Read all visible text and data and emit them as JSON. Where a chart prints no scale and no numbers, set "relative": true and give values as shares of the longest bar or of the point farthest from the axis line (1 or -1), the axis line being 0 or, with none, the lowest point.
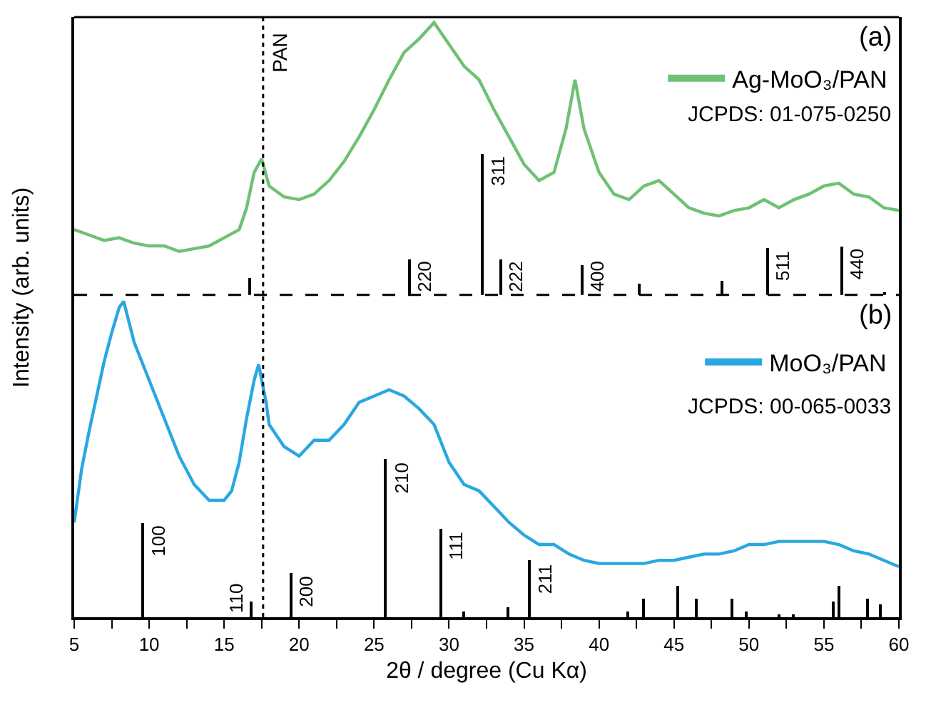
{
  "chart_data": [
    {
      "type": "line",
      "relative": true,
      "xlim": [
        5,
        60
      ],
      "tick_labels": false,
      "legend": "top right",
      "ylabel": "Intensity (arb. units)",
      "series": [
        {
          "name": "Ag-MoO₃/PAN",
          "color": "#6fc173",
          "x": [
            5,
            6,
            7,
            8,
            9,
            10,
            11,
            12,
            13,
            14,
            15,
            16,
            16.5,
            17,
            17.5,
            18,
            19,
            20,
            21,
            22,
            23,
            24,
            25,
            26,
            27,
            28,
            29,
            30,
            31,
            32,
            33,
            34,
            35,
            36,
            37,
            37.8,
            38.4,
            39,
            40,
            41,
            42,
            43,
            44,
            45,
            46,
            47,
            48,
            49,
            50,
            51,
            52,
            53,
            54,
            55,
            56,
            57,
            58,
            59,
            60
          ],
          "values": [
            0.24,
            0.22,
            0.2,
            0.21,
            0.19,
            0.18,
            0.18,
            0.16,
            0.17,
            0.18,
            0.21,
            0.24,
            0.32,
            0.45,
            0.5,
            0.4,
            0.36,
            0.35,
            0.37,
            0.42,
            0.49,
            0.58,
            0.68,
            0.79,
            0.89,
            0.94,
            1.0,
            0.92,
            0.84,
            0.79,
            0.68,
            0.58,
            0.48,
            0.42,
            0.45,
            0.61,
            0.79,
            0.61,
            0.45,
            0.37,
            0.35,
            0.4,
            0.42,
            0.37,
            0.32,
            0.3,
            0.29,
            0.31,
            0.32,
            0.35,
            0.32,
            0.35,
            0.37,
            0.4,
            0.41,
            0.37,
            0.36,
            0.32,
            0.31
          ]
        },
        {
          "type": "bar",
          "color": "#000000",
          "x": [
            16.7,
            27.4,
            32.2,
            33.5,
            38.9,
            42.7,
            48.2,
            51.3,
            56.2,
            59.1
          ],
          "values": [
            0.06,
            0.13,
            0.52,
            0.13,
            0.11,
            0.04,
            0.05,
            0.17,
            0.18,
            0.01
          ]
        }
      ],
      "ref_lines": [
        {
          "axis": "x",
          "value": 17.6,
          "label": "PAN",
          "color": "#000000",
          "line_style": "dotted"
        }
      ],
      "annotations": [
        "(a)",
        "JCPDS: 01-075-0250",
        {
          "text": "220",
          "x": 27.4,
          "y": 0.13
        },
        {
          "text": "311",
          "x": 32.2,
          "y": 0.52
        },
        {
          "text": "222",
          "x": 33.5,
          "y": 0.13
        },
        {
          "text": "400",
          "x": 38.9,
          "y": 0.11
        },
        {
          "text": "511",
          "x": 51.3,
          "y": 0.17
        },
        {
          "text": "440",
          "x": 56.2,
          "y": 0.18
        }
      ]
    },
    {
      "type": "line",
      "relative": true,
      "xlim": [
        5,
        60
      ],
      "tick_labels": "x",
      "legend": "top right",
      "xlabel": "2θ / degree (Cu Kα)",
      "xticks": [
        5,
        {
          "value": 7.5,
          "label": null
        },
        10,
        {
          "value": 12.5,
          "label": null
        },
        15,
        {
          "value": 17.5,
          "label": null
        },
        20,
        {
          "value": 22.5,
          "label": null
        },
        25,
        {
          "value": 27.5,
          "label": null
        },
        30,
        {
          "value": 32.5,
          "label": null
        },
        35,
        {
          "value": 37.5,
          "label": null
        },
        40,
        {
          "value": 42.5,
          "label": null
        },
        45,
        {
          "value": 47.5,
          "label": null
        },
        50,
        {
          "value": 52.5,
          "label": null
        },
        55,
        {
          "value": 57.5,
          "label": null
        },
        60
      ],
      "series": [
        {
          "name": "MoO₃/PAN",
          "color": "#29a8e0",
          "x": [
            5,
            5.5,
            6,
            6.5,
            7,
            7.5,
            8,
            8.3,
            9,
            10,
            11,
            12,
            13,
            14,
            15,
            15.5,
            16,
            16.5,
            17,
            17.3,
            17.8,
            18,
            19,
            20,
            21,
            22,
            23,
            24,
            25,
            26,
            27,
            28,
            29,
            30,
            31,
            32,
            33,
            34,
            35,
            36,
            37,
            38,
            39,
            40,
            41,
            42,
            43,
            44,
            45,
            46,
            47,
            48,
            49,
            50,
            51,
            52,
            53,
            54,
            55,
            56,
            57,
            58,
            59,
            60
          ],
          "values": [
            0.3,
            0.47,
            0.59,
            0.7,
            0.81,
            0.9,
            0.98,
            1.0,
            0.87,
            0.75,
            0.63,
            0.51,
            0.42,
            0.37,
            0.37,
            0.4,
            0.49,
            0.63,
            0.75,
            0.8,
            0.68,
            0.61,
            0.54,
            0.51,
            0.56,
            0.56,
            0.61,
            0.68,
            0.7,
            0.72,
            0.7,
            0.66,
            0.61,
            0.49,
            0.42,
            0.4,
            0.35,
            0.3,
            0.26,
            0.23,
            0.23,
            0.2,
            0.18,
            0.17,
            0.17,
            0.17,
            0.17,
            0.18,
            0.18,
            0.19,
            0.2,
            0.2,
            0.21,
            0.23,
            0.23,
            0.24,
            0.24,
            0.24,
            0.24,
            0.23,
            0.21,
            0.2,
            0.18,
            0.16
          ]
        },
        {
          "type": "bar",
          "color": "#000000",
          "x": [
            9.6,
            16.8,
            19.5,
            25.8,
            29.5,
            31.0,
            33.9,
            35.4,
            41.9,
            43.0,
            45.3,
            46.5,
            48.9,
            49.8,
            52.0,
            53.0,
            55.6,
            56.0,
            57.9,
            58.8
          ],
          "values": [
            0.3,
            0.05,
            0.14,
            0.5,
            0.28,
            0.02,
            0.03,
            0.18,
            0.02,
            0.06,
            0.1,
            0.06,
            0.06,
            0.02,
            0.01,
            0.01,
            0.05,
            0.1,
            0.06,
            0.04
          ]
        }
      ],
      "ref_lines": [
        {
          "axis": "x",
          "value": 17.6,
          "color": "#000000",
          "line_style": "dotted"
        }
      ],
      "annotations": [
        "(b)",
        "JCPDS: 00-065-0033",
        {
          "text": "100",
          "x": 9.6,
          "y": 0.3
        },
        {
          "text": "110",
          "x": 16.8,
          "y": 0.05
        },
        {
          "text": "200",
          "x": 19.5,
          "y": 0.14
        },
        {
          "text": "210",
          "x": 25.8,
          "y": 0.5
        },
        {
          "text": "111",
          "x": 29.5,
          "y": 0.28
        },
        {
          "text": "211",
          "x": 35.4,
          "y": 0.18
        }
      ]
    }
  ]
}
